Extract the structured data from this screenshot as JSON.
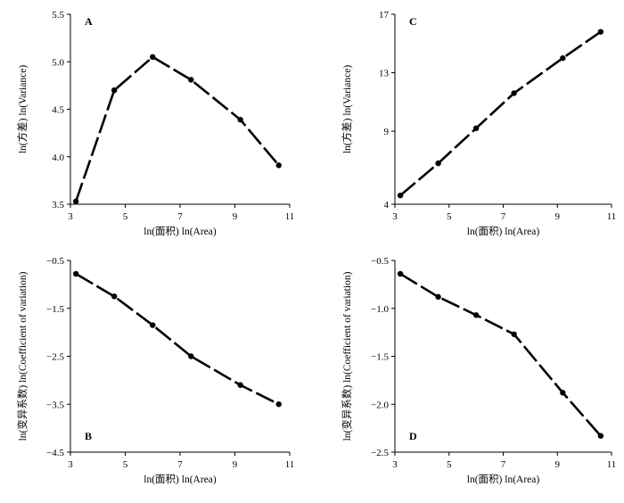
{
  "chart_data": [
    {
      "type": "line",
      "panel_label": "A",
      "xlabel": "ln(面积) ln(Area)",
      "ylabel": "ln(方差) ln(Variance)",
      "xlim": [
        3,
        11
      ],
      "ylim": [
        3.5,
        5.5
      ],
      "x_ticks": [
        3,
        5,
        7,
        9,
        11
      ],
      "y_ticks": [
        3.5,
        4.0,
        4.5,
        5.0,
        5.5
      ],
      "y_tick_labels": [
        "3.5",
        "4.0",
        "4.5",
        "5.0",
        "5.5"
      ],
      "series": [
        {
          "x": [
            3.2,
            4.6,
            6.0,
            7.4,
            9.2,
            10.6
          ],
          "y": [
            3.53,
            4.7,
            5.05,
            4.81,
            4.39,
            3.91
          ]
        }
      ]
    },
    {
      "type": "line",
      "panel_label": "C",
      "xlabel": "ln(面积) ln(Area)",
      "ylabel": "ln(方差) ln(Variance)",
      "xlim": [
        3,
        11
      ],
      "ylim": [
        4,
        17
      ],
      "x_ticks": [
        3,
        5,
        7,
        9,
        11
      ],
      "y_ticks": [
        4,
        9,
        13,
        17
      ],
      "y_tick_labels": [
        "4",
        "9",
        "13",
        "17"
      ],
      "series": [
        {
          "x": [
            3.2,
            4.6,
            6.0,
            7.4,
            9.2,
            10.6
          ],
          "y": [
            4.6,
            6.8,
            9.2,
            11.6,
            14.0,
            15.8
          ]
        }
      ]
    },
    {
      "type": "line",
      "panel_label": "B",
      "xlabel": "ln(面积) ln(Area)",
      "ylabel": "ln(变异系数) ln(Coefficient of variation)",
      "xlim": [
        3,
        11
      ],
      "ylim": [
        -4.5,
        -0.5
      ],
      "x_ticks": [
        3,
        5,
        7,
        9,
        11
      ],
      "y_ticks": [
        -4.5,
        -3.5,
        -2.5,
        -1.5,
        -0.5
      ],
      "y_tick_labels": [
        "−4.5",
        "−3.5",
        "−2.5",
        "−1.5",
        "−0.5"
      ],
      "series": [
        {
          "x": [
            3.2,
            4.6,
            6.0,
            7.4,
            9.2,
            10.6
          ],
          "y": [
            -0.78,
            -1.25,
            -1.85,
            -2.5,
            -3.1,
            -3.5
          ]
        }
      ]
    },
    {
      "type": "line",
      "panel_label": "D",
      "xlabel": "ln(面积) ln(Area)",
      "ylabel": "ln(变异系数) ln(Coefficient of variation)",
      "xlim": [
        3,
        11
      ],
      "ylim": [
        -2.5,
        -0.5
      ],
      "x_ticks": [
        3,
        5,
        7,
        9,
        11
      ],
      "y_ticks": [
        -2.5,
        -2.0,
        -1.5,
        -1.0,
        -0.5
      ],
      "y_tick_labels": [
        "−2.5",
        "−2.0",
        "−1.5",
        "−1.0",
        "−0.5"
      ],
      "series": [
        {
          "x": [
            3.2,
            4.6,
            6.0,
            7.4,
            9.2,
            10.6
          ],
          "y": [
            -0.64,
            -0.88,
            -1.07,
            -1.27,
            -1.88,
            -2.33
          ]
        }
      ]
    }
  ]
}
